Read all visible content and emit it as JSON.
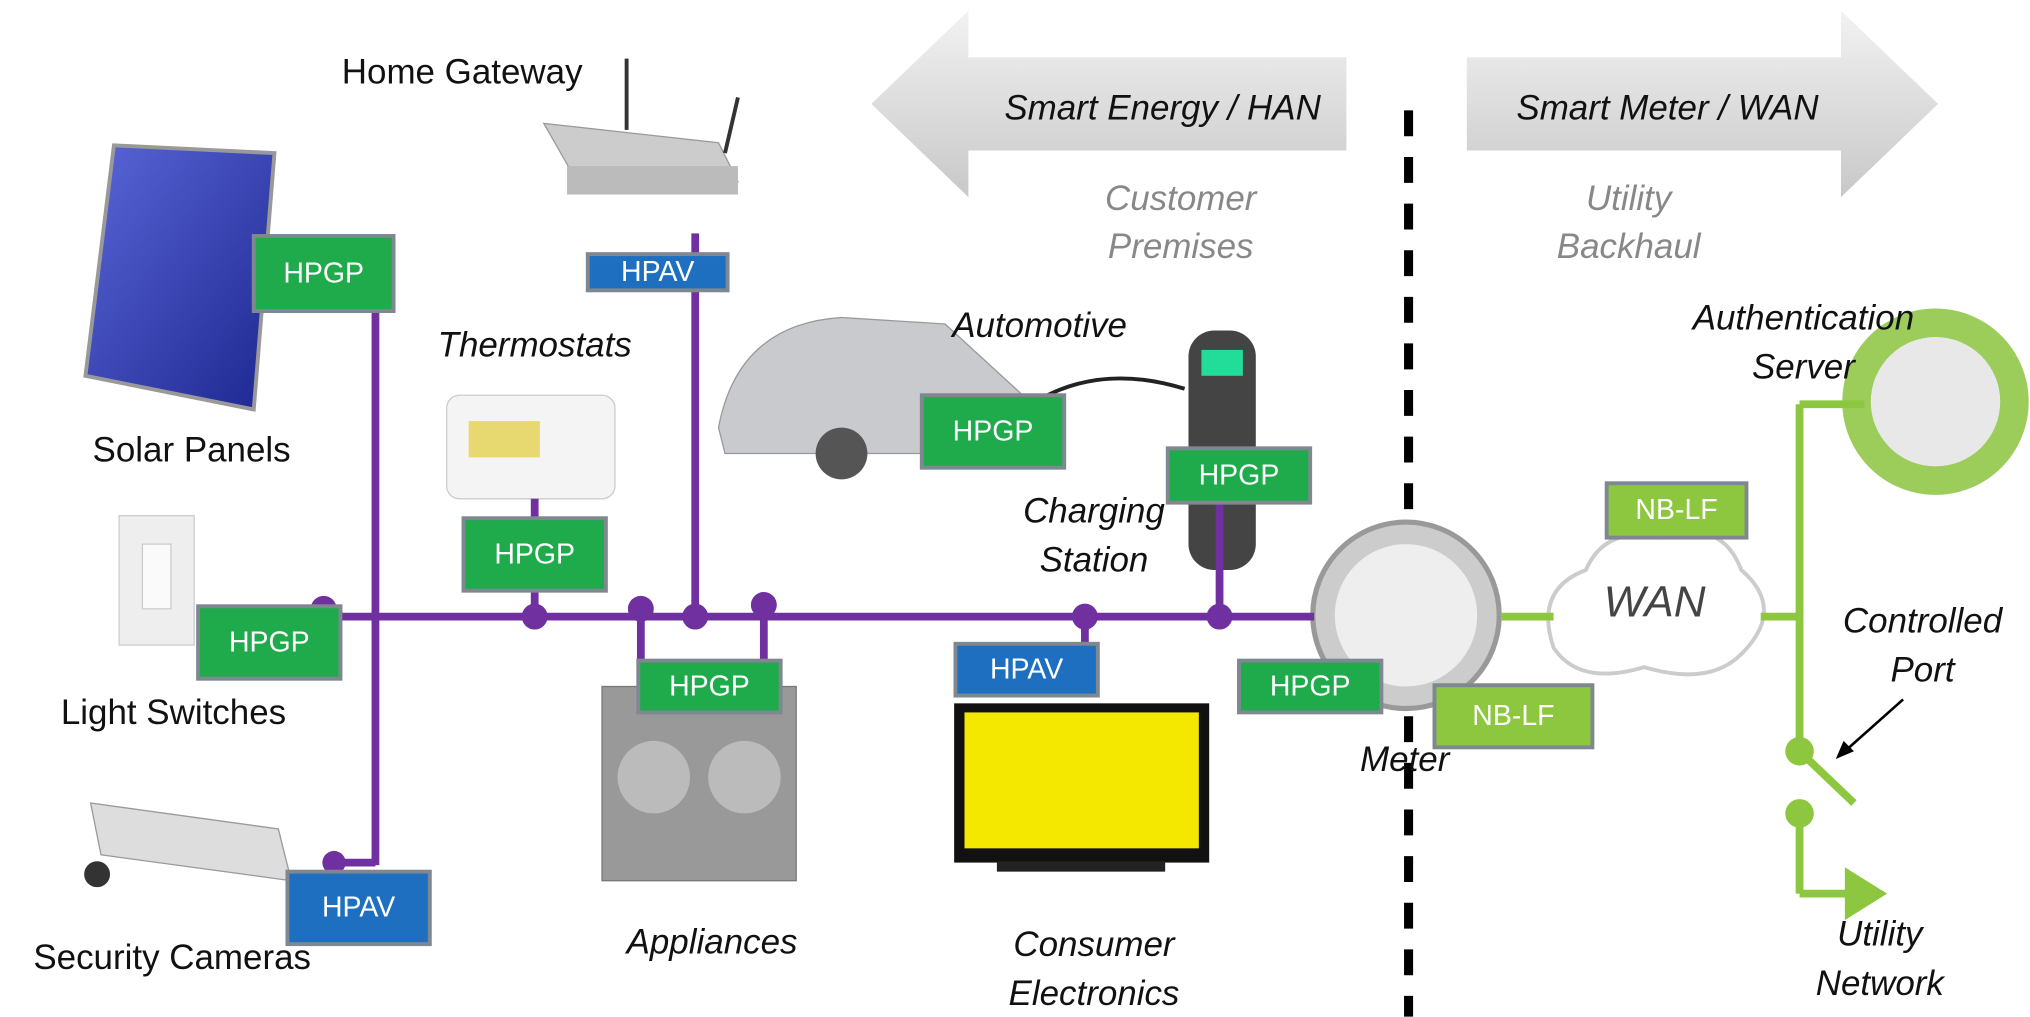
{
  "arrows": {
    "han": "Smart Energy / HAN",
    "wan": "Smart Meter / WAN"
  },
  "zones": [
    {
      "lines": [
        "Customer",
        "Premises"
      ]
    },
    {
      "lines": [
        "Utility",
        "Backhaul"
      ]
    }
  ],
  "devices": [
    {
      "lines": [
        "Home Gateway"
      ]
    },
    {
      "lines": [
        "Thermostats"
      ]
    },
    {
      "lines": [
        "Automotive"
      ]
    },
    {
      "lines": [
        "Authentication",
        "Server"
      ]
    },
    {
      "lines": [
        "Solar Panels"
      ]
    },
    {
      "lines": [
        "Charging",
        "Station"
      ]
    },
    {
      "lines": [
        "WAN"
      ]
    },
    {
      "lines": [
        "Controlled",
        "Port"
      ]
    },
    {
      "lines": [
        "Light Switches"
      ]
    },
    {
      "lines": [
        "Meter"
      ]
    },
    {
      "lines": [
        "Security Cameras"
      ]
    },
    {
      "lines": [
        "Appliances"
      ]
    },
    {
      "lines": [
        "Consumer",
        "Electronics"
      ]
    },
    {
      "lines": [
        "Utility",
        "Network"
      ]
    }
  ],
  "badges": [
    "HPGP",
    "HPAV",
    "HPGP",
    "HPGP",
    "HPGP",
    "HPGP",
    "HPGP",
    "HPAV",
    "HPGP",
    "NB-LF",
    "NB-LF",
    "HPAV"
  ]
}
